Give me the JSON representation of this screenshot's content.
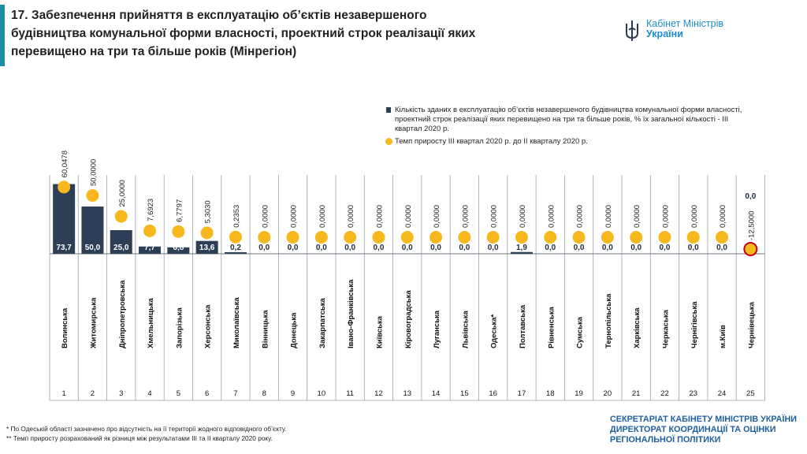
{
  "page": {
    "title": "17. Забезпечення прийняття в експлуатацію об’єктів незавершеного будівництва комунальної форми власності, проектний строк реалізації яких перевищено на три та більше років (Мінрегіон)",
    "logo": {
      "line1": "Кабінет Міністрів",
      "line2": "України"
    },
    "footnote1": "*   По Одеській області зазначено про відсутність на її території жодного відповідного об’єкту.",
    "footnote2": "** Темп приросту розрахований як різниця між результатами ІІІ та ІІ кварталу 2020 року.",
    "secretariat": {
      "line1": "СЕКРЕТАРІАТ КАБІНЕТУ МІНІСТРІВ УКРАЇНИ",
      "line2": "ДИРЕКТОРАТ КООРДИНАЦІЇ ТА ОЦІНКИ",
      "line3": "РЕГІОНАЛЬНОЇ ПОЛІТИКИ"
    },
    "colors": {
      "bar": "#2d3e57",
      "dot": "#f6b81c",
      "dot_negative_border": "#c0001a",
      "accent": "#1b8ea6"
    }
  },
  "chart_data": {
    "type": "bar",
    "legend": [
      "Кількість зданих в експлуатацію об’єктів незавершеного будівництва комунальної форми власності, проектний строк реалізації яких перевищено на три та більше років, % їх загальної кількості - ІІІ квартал 2020 р.",
      "Темп приросту ІІІ квартал 2020 р. до ІІ кварталу 2020 р."
    ],
    "legend_placement": "top-right",
    "categories": [
      "Волинська",
      "Житомирська",
      "Дніпропетровська",
      "Хмельницька",
      "Запорізька",
      "Херсонська",
      "Миколаївська",
      "Вінницька",
      "Донецька",
      "Закарпатська",
      "Івано-Франківська",
      "Київська",
      "Кіровоградська",
      "Луганська",
      "Львівська",
      "Одеська*",
      "Полтавська",
      "Рівненська",
      "Сумська",
      "Тернопільська",
      "Харківська",
      "Черкаська",
      "Чернігівська",
      "м.Київ",
      "Чернівецька"
    ],
    "ranks": [
      "1",
      "2",
      "3",
      "4",
      "5",
      "6",
      "7",
      "8",
      "9",
      "10",
      "11",
      "12",
      "13",
      "14",
      "15",
      "16",
      "17",
      "18",
      "19",
      "20",
      "21",
      "22",
      "23",
      "24",
      "25"
    ],
    "series": [
      {
        "name": "Кількість зданих в експлуатацію об’єктів незавершеного будівництва комунальної форми власності, проектний строк реалізації яких перевищено на три та більше років, % їх загальної кількості - ІІІ квартал 2020 р.",
        "values": [
          73.7,
          50.0,
          25.0,
          7.7,
          6.8,
          13.6,
          0.2,
          0.0,
          0.0,
          0.0,
          0.0,
          0.0,
          0.0,
          0.0,
          0.0,
          0.0,
          1.9,
          0.0,
          0.0,
          0.0,
          0.0,
          0.0,
          0.0,
          0.0,
          0.0
        ],
        "labels": [
          "73,7",
          "50,0",
          "25,0",
          "7,7",
          "6,8",
          "13,6",
          "0,2",
          "0,0",
          "0,0",
          "0,0",
          "0,0",
          "0,0",
          "0,0",
          "0,0",
          "0,0",
          "0,0",
          "1,9",
          "0,0",
          "0,0",
          "0,0",
          "0,0",
          "0,0",
          "0,0",
          "0,0",
          "0,0"
        ]
      },
      {
        "name": "Темп приросту ІІІ квартал 2020 р. до ІІ кварталу 2020 р.",
        "values": [
          60.0478,
          50.0,
          25.0,
          7.6923,
          6.7797,
          5.303,
          0.2353,
          0,
          0,
          0,
          0,
          0,
          0,
          0,
          0,
          0,
          0,
          0,
          0,
          0,
          0,
          0,
          0,
          0,
          -12.5
        ],
        "labels": [
          "60,0478",
          "50,0000",
          "25,0000",
          "7,6923",
          "6,7797",
          "5,3030",
          "0,2353",
          "0,0000",
          "0,0000",
          "0,0000",
          "0,0000",
          "0,0000",
          "0,0000",
          "0,0000",
          "0,0000",
          "0,0000",
          "0,0000",
          "0,0000",
          "0,0000",
          "0,0000",
          "0,0000",
          "0,0000",
          "0,0000",
          "0,0000",
          "-12,5000"
        ]
      }
    ]
  }
}
